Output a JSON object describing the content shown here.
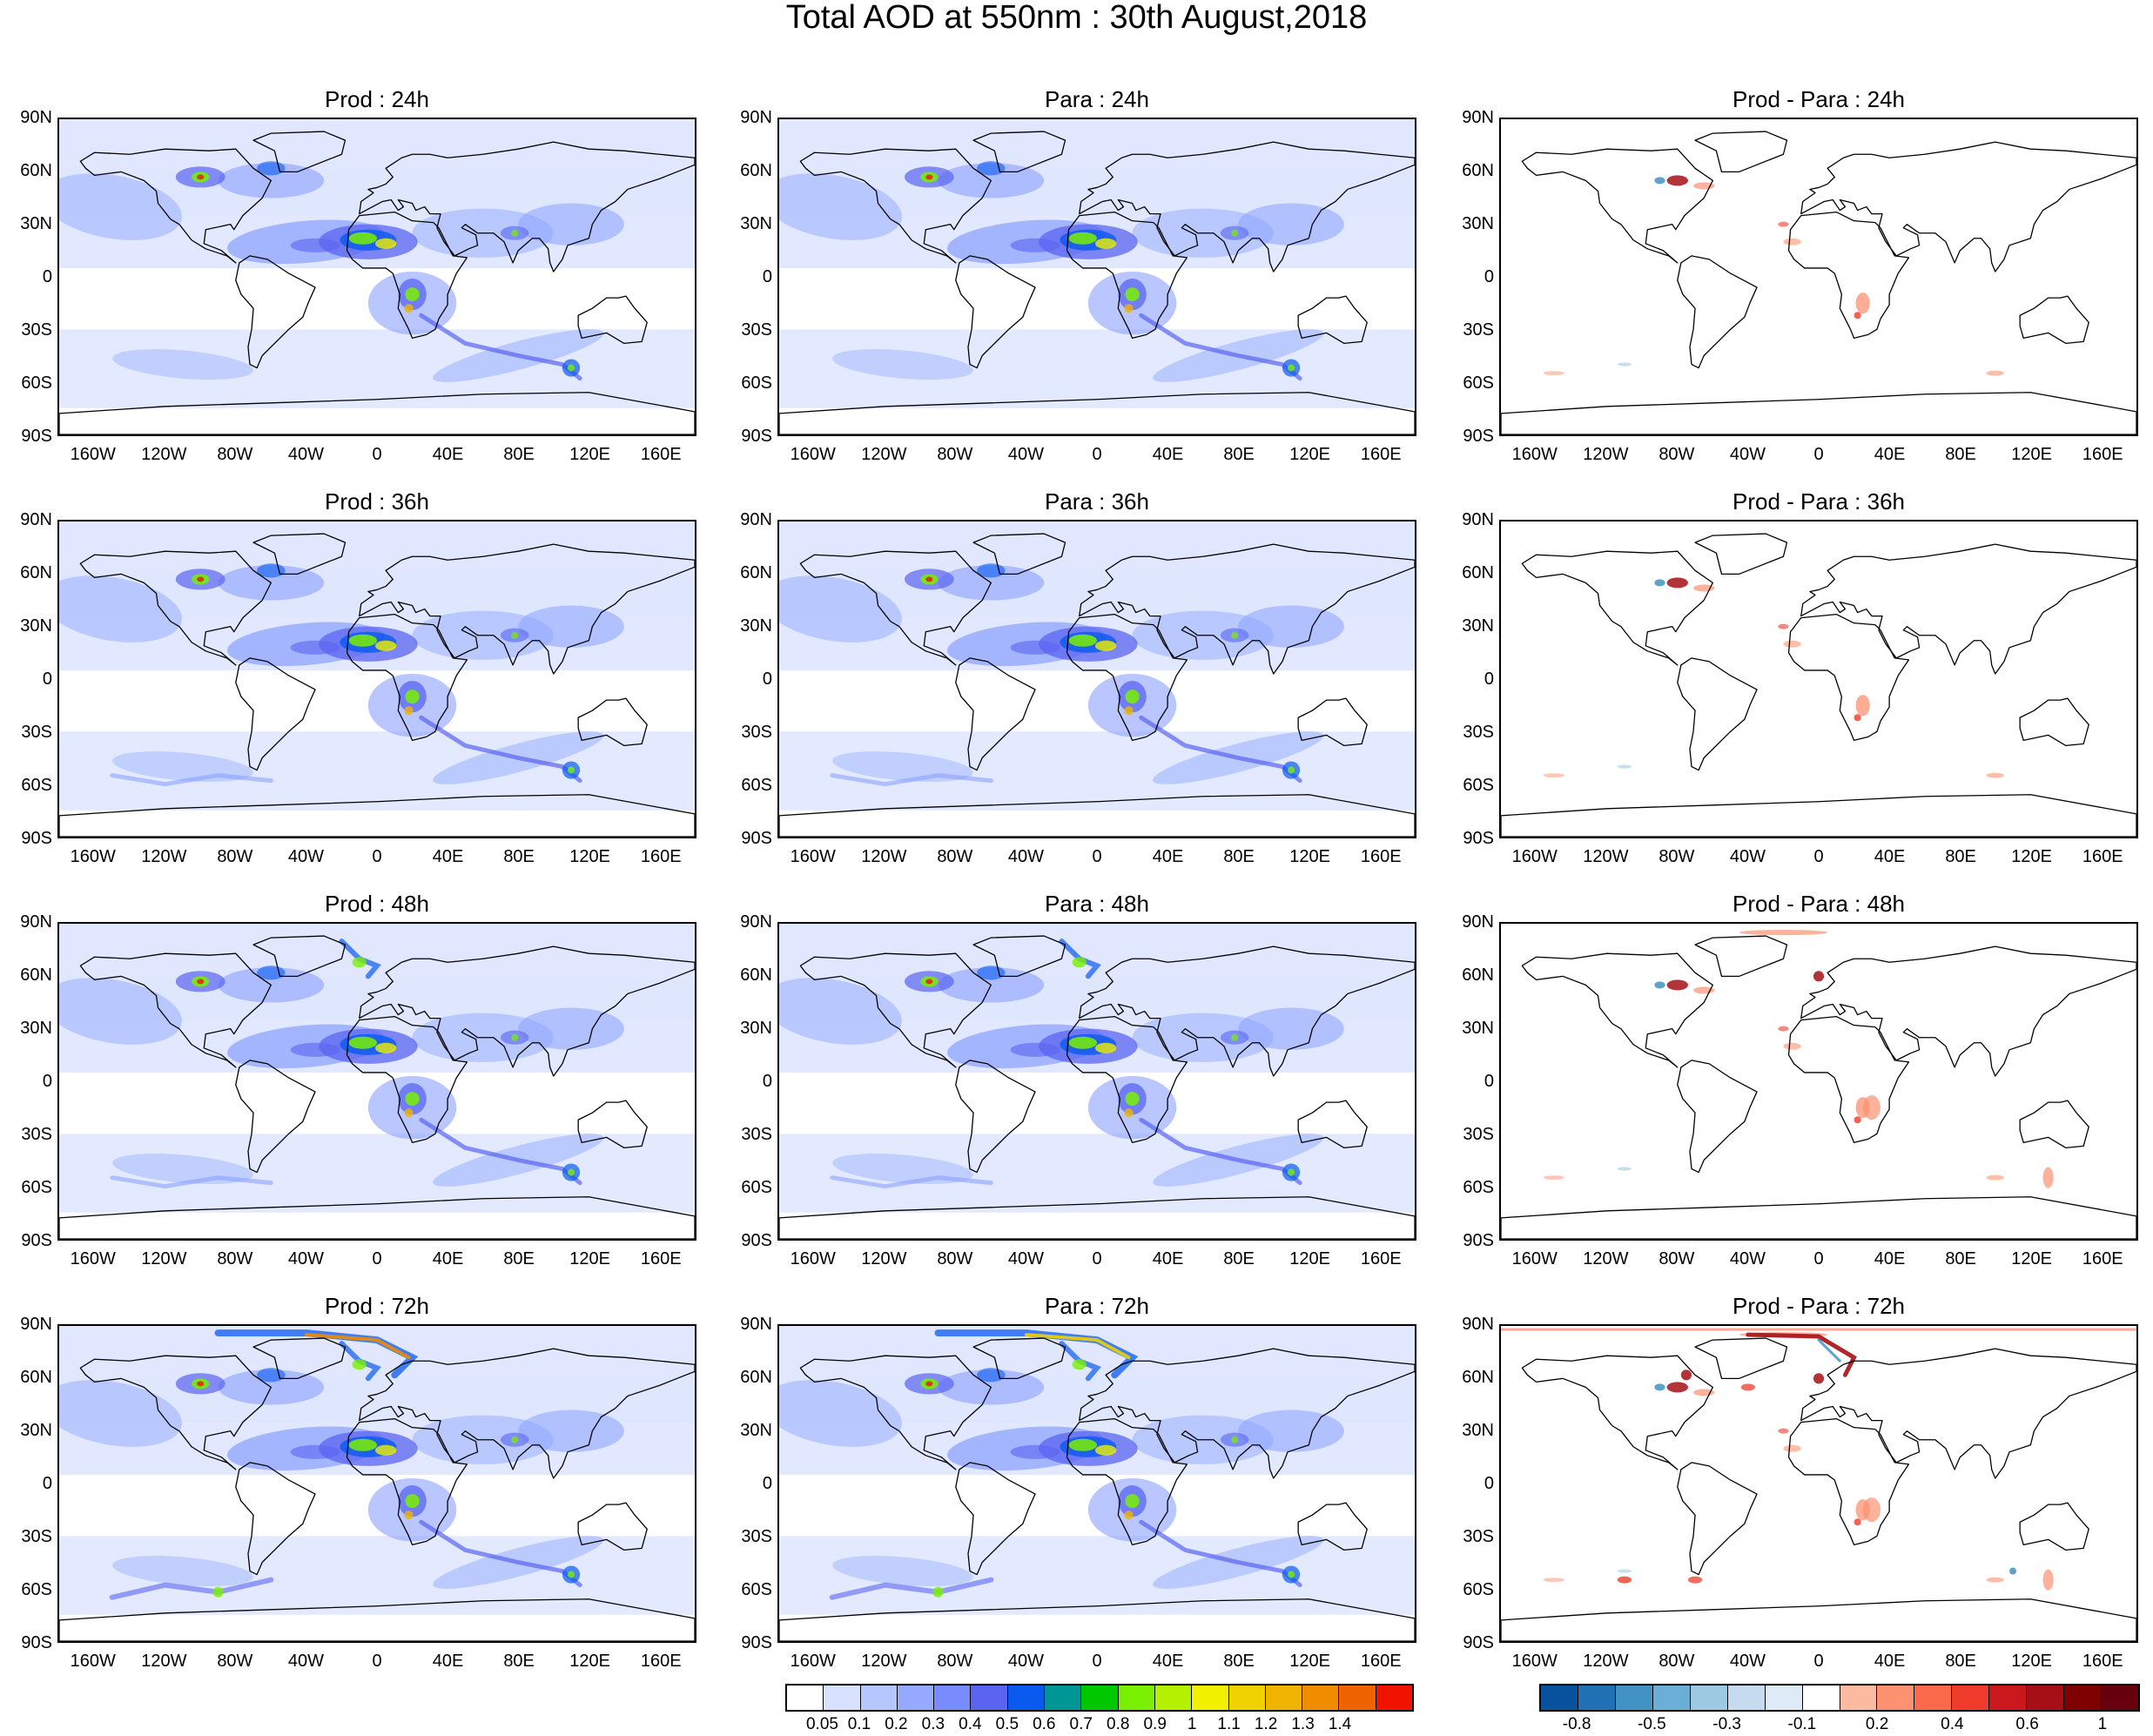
{
  "title": "Total AOD at 550nm : 30th August,2018",
  "lat_ticks": [
    "90N",
    "60N",
    "30N",
    "0",
    "30S",
    "60S",
    "90S"
  ],
  "lon_ticks": [
    "160W",
    "120W",
    "80W",
    "40W",
    "0",
    "40E",
    "80E",
    "120E",
    "160E"
  ],
  "chart_data": [
    {
      "type": "heatmap",
      "title": "Prod : 24h",
      "lead_hours": 24,
      "field": "Total AOD at 550nm",
      "xlim": [
        -180,
        180
      ],
      "ylim": [
        -90,
        90
      ],
      "colorbar": "aod"
    },
    {
      "type": "heatmap",
      "title": "Para : 24h",
      "lead_hours": 24,
      "field": "Total AOD at 550nm",
      "xlim": [
        -180,
        180
      ],
      "ylim": [
        -90,
        90
      ],
      "colorbar": "aod"
    },
    {
      "type": "heatmap",
      "title": "Prod - Para : 24h",
      "lead_hours": 24,
      "field": "AOD difference",
      "xlim": [
        -180,
        180
      ],
      "ylim": [
        -90,
        90
      ],
      "colorbar": "diff"
    },
    {
      "type": "heatmap",
      "title": "Prod : 36h",
      "lead_hours": 36,
      "field": "Total AOD at 550nm",
      "xlim": [
        -180,
        180
      ],
      "ylim": [
        -90,
        90
      ],
      "colorbar": "aod"
    },
    {
      "type": "heatmap",
      "title": "Para : 36h",
      "lead_hours": 36,
      "field": "Total AOD at 550nm",
      "xlim": [
        -180,
        180
      ],
      "ylim": [
        -90,
        90
      ],
      "colorbar": "aod"
    },
    {
      "type": "heatmap",
      "title": "Prod - Para : 36h",
      "lead_hours": 36,
      "field": "AOD difference",
      "xlim": [
        -180,
        180
      ],
      "ylim": [
        -90,
        90
      ],
      "colorbar": "diff"
    },
    {
      "type": "heatmap",
      "title": "Prod : 48h",
      "lead_hours": 48,
      "field": "Total AOD at 550nm",
      "xlim": [
        -180,
        180
      ],
      "ylim": [
        -90,
        90
      ],
      "colorbar": "aod"
    },
    {
      "type": "heatmap",
      "title": "Para : 48h",
      "lead_hours": 48,
      "field": "Total AOD at 550nm",
      "xlim": [
        -180,
        180
      ],
      "ylim": [
        -90,
        90
      ],
      "colorbar": "aod"
    },
    {
      "type": "heatmap",
      "title": "Prod - Para : 48h",
      "lead_hours": 48,
      "field": "AOD difference",
      "xlim": [
        -180,
        180
      ],
      "ylim": [
        -90,
        90
      ],
      "colorbar": "diff"
    },
    {
      "type": "heatmap",
      "title": "Prod : 72h",
      "lead_hours": 72,
      "field": "Total AOD at 550nm",
      "xlim": [
        -180,
        180
      ],
      "ylim": [
        -90,
        90
      ],
      "colorbar": "aod"
    },
    {
      "type": "heatmap",
      "title": "Para : 72h",
      "lead_hours": 72,
      "field": "Total AOD at 550nm",
      "xlim": [
        -180,
        180
      ],
      "ylim": [
        -90,
        90
      ],
      "colorbar": "aod"
    },
    {
      "type": "heatmap",
      "title": "Prod - Para : 72h",
      "lead_hours": 72,
      "field": "AOD difference",
      "xlim": [
        -180,
        180
      ],
      "ylim": [
        -90,
        90
      ],
      "colorbar": "diff"
    }
  ],
  "colorbars": {
    "aod": {
      "colors": [
        "#ffffff",
        "#d6e2ff",
        "#b4c8ff",
        "#96aaff",
        "#788cff",
        "#5a64f0",
        "#0a5af0",
        "#009696",
        "#00c800",
        "#78f000",
        "#b4f000",
        "#f0f000",
        "#f0d200",
        "#f0b400",
        "#f08c00",
        "#f06400",
        "#f01400"
      ],
      "labels": [
        "0.05",
        "0.1",
        "0.2",
        "0.3",
        "0.4",
        "0.5",
        "0.6",
        "0.7",
        "0.8",
        "0.9",
        "1",
        "1.1",
        "1.2",
        "1.3",
        "1.4"
      ]
    },
    "diff": {
      "colors": [
        "#08519c",
        "#2171b5",
        "#4292c6",
        "#6baed6",
        "#9ecae1",
        "#c6dbef",
        "#deebf7",
        "#ffffff",
        "#fcbba1",
        "#fc9272",
        "#fb6a4a",
        "#ef3b2c",
        "#cb181d",
        "#a50f15",
        "#7f0000",
        "#67000d"
      ],
      "labels": [
        "-0.8",
        "-0.5",
        "-0.3",
        "-0.1",
        "0.2",
        "0.4",
        "0.6",
        "1"
      ]
    }
  }
}
